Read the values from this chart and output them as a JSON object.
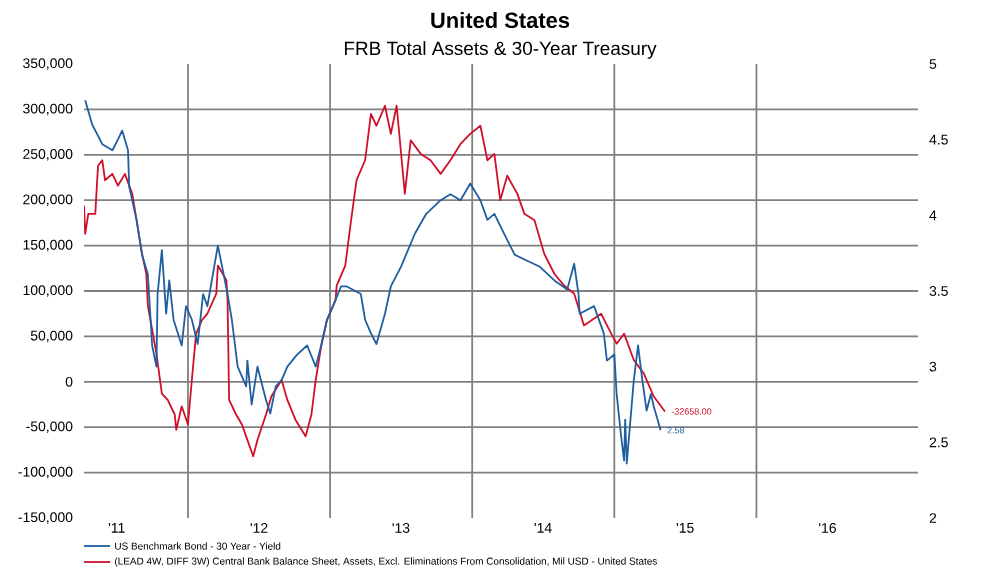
{
  "chart_data": {
    "type": "line",
    "title": "United States",
    "subtitle": "FRB Total Assets & 30-Year Treasury",
    "xlim": [
      "2011-04-09",
      "2017-02-20"
    ],
    "xticks": [
      {
        "value": "2011-07-02",
        "label": "'11"
      },
      {
        "value": "2012-01-01",
        "label": null
      },
      {
        "value": "2012-07-02",
        "label": "'12"
      },
      {
        "value": "2013-01-01",
        "label": null
      },
      {
        "value": "2013-07-02",
        "label": "'13"
      },
      {
        "value": "2014-01-01",
        "label": null
      },
      {
        "value": "2014-07-02",
        "label": "'14"
      },
      {
        "value": "2015-01-01",
        "label": null
      },
      {
        "value": "2015-07-02",
        "label": "'15"
      },
      {
        "value": "2016-01-01",
        "label": null
      },
      {
        "value": "2016-07-02",
        "label": "'16"
      }
    ],
    "ylim": [
      -150000,
      350000
    ],
    "yticks": [
      {
        "value": -150000,
        "label": "-150,000"
      },
      {
        "value": -100000,
        "label": "-100,000"
      },
      {
        "value": -50000,
        "label": "-50,000"
      },
      0,
      {
        "value": 50000,
        "label": "50,000"
      },
      {
        "value": 100000,
        "label": "100,000"
      },
      {
        "value": 150000,
        "label": "150,000"
      },
      {
        "value": 200000,
        "label": "200,000"
      },
      {
        "value": 250000,
        "label": "250,000"
      },
      {
        "value": 300000,
        "label": "300,000"
      },
      {
        "value": 350000,
        "label": "350,000"
      }
    ],
    "y2lim": [
      2,
      5
    ],
    "y2ticks": [
      2,
      2.5,
      3,
      3.5,
      4,
      4.5,
      5
    ],
    "grid": true,
    "legend": "bottom",
    "series": [
      {
        "name": "US Benchmark Bond - 30 Year - Yield",
        "color": "#1f5fa0",
        "axis": "y2",
        "x": [
          "2011-04-12",
          "2011-04-30",
          "2011-05-26",
          "2011-06-21",
          "2011-07-05",
          "2011-07-16",
          "2011-07-31",
          "2011-08-03",
          "2011-08-22",
          "2011-09-05",
          "2011-09-20",
          "2011-10-01",
          "2011-10-12",
          "2011-10-15",
          "2011-10-26",
          "2011-11-06",
          "2011-11-14",
          "2011-11-25",
          "2011-12-16",
          "2011-12-27",
          "2012-01-11",
          "2012-01-26",
          "2012-02-09",
          "2012-02-20",
          "2012-03-18",
          "2012-03-29",
          "2012-04-12",
          "2012-04-23",
          "2012-05-08",
          "2012-05-30",
          "2012-06-02",
          "2012-06-13",
          "2012-06-28",
          "2012-07-20",
          "2012-07-31",
          "2012-08-14",
          "2012-08-29",
          "2012-09-13",
          "2012-10-08",
          "2012-11-03",
          "2012-11-25",
          "2012-12-09",
          "2012-12-24",
          "2013-01-15",
          "2013-01-29",
          "2013-02-13",
          "2013-03-21",
          "2013-04-01",
          "2013-04-16",
          "2013-04-30",
          "2013-05-22",
          "2013-06-06",
          "2013-07-02",
          "2013-08-07",
          "2013-09-05",
          "2013-10-12",
          "2013-11-06",
          "2013-12-02",
          "2013-12-27",
          "2014-01-22",
          "2014-02-09",
          "2014-02-27",
          "2014-03-14",
          "2014-04-20",
          "2014-05-22",
          "2014-06-24",
          "2014-07-31",
          "2014-09-02",
          "2014-09-20",
          "2014-10-01",
          "2014-10-04",
          "2014-11-10",
          "2014-12-05",
          "2014-12-13",
          "2015-01-01",
          "2015-01-07",
          "2015-01-18",
          "2015-01-26",
          "2015-01-29",
          "2015-02-02",
          "2015-02-20",
          "2015-03-03",
          "2015-03-14",
          "2015-03-25",
          "2015-04-05",
          "2015-04-12",
          "2015-04-30"
        ],
        "values": [
          4.76,
          4.6,
          4.47,
          4.43,
          4.5,
          4.56,
          4.43,
          4.19,
          3.97,
          3.74,
          3.61,
          3.14,
          3.0,
          3.48,
          3.77,
          3.35,
          3.57,
          3.31,
          3.14,
          3.4,
          3.31,
          3.15,
          3.48,
          3.4,
          3.8,
          3.66,
          3.48,
          3.31,
          3.0,
          2.87,
          3.04,
          2.75,
          3.0,
          2.78,
          2.69,
          2.87,
          2.91,
          3.0,
          3.08,
          3.14,
          3.0,
          3.14,
          3.31,
          3.44,
          3.53,
          3.53,
          3.48,
          3.31,
          3.22,
          3.15,
          3.35,
          3.53,
          3.66,
          3.88,
          4.01,
          4.1,
          4.14,
          4.1,
          4.21,
          4.1,
          3.97,
          4.01,
          3.93,
          3.74,
          3.7,
          3.66,
          3.57,
          3.51,
          3.68,
          3.48,
          3.35,
          3.4,
          3.22,
          3.04,
          3.08,
          2.82,
          2.55,
          2.38,
          2.65,
          2.36,
          2.91,
          3.14,
          2.91,
          2.71,
          2.82,
          2.74,
          2.58
        ],
        "value_labels": [
          null,
          null,
          null,
          null,
          null,
          null,
          null,
          null,
          null,
          null,
          null,
          null,
          null,
          null,
          null,
          null,
          null,
          null,
          null,
          null,
          null,
          null,
          null,
          null,
          null,
          null,
          null,
          null,
          null,
          null,
          null,
          null,
          null,
          null,
          null,
          null,
          null,
          null,
          null,
          null,
          null,
          null,
          null,
          null,
          null,
          null,
          null,
          null,
          null,
          null,
          null,
          null,
          null,
          null,
          null,
          null,
          null,
          null,
          null,
          null,
          null,
          null,
          null,
          null,
          null,
          null,
          null,
          null,
          null,
          null,
          null,
          null,
          null,
          null,
          null,
          null,
          null,
          null,
          null,
          null,
          null,
          null,
          null,
          null,
          null,
          null,
          "2.58"
        ]
      },
      {
        "name": "(LEAD 4W, DIFF 3W) Central Bank Balance Sheet, Assets, Excl. Eliminations From Consolidation, Mil USD - United States",
        "color": "#d0102a",
        "x": [
          "2011-04-09",
          "2011-04-12",
          "2011-04-20",
          "2011-05-08",
          "2011-05-15",
          "2011-05-26",
          "2011-06-02",
          "2011-06-21",
          "2011-07-05",
          "2011-07-23",
          "2011-08-11",
          "2011-08-22",
          "2011-09-05",
          "2011-09-16",
          "2011-09-20",
          "2011-10-12",
          "2011-10-26",
          "2011-11-10",
          "2011-11-28",
          "2011-12-02",
          "2011-12-16",
          "2012-01-01",
          "2012-01-11",
          "2012-01-22",
          "2012-02-06",
          "2012-02-20",
          "2012-03-14",
          "2012-03-18",
          "2012-04-09",
          "2012-04-12",
          "2012-04-16",
          "2012-05-04",
          "2012-05-19",
          "2012-06-02",
          "2012-06-17",
          "2012-06-28",
          "2012-07-20",
          "2012-08-03",
          "2012-08-29",
          "2012-09-13",
          "2012-10-04",
          "2012-10-30",
          "2012-11-14",
          "2012-11-25",
          "2012-12-09",
          "2012-12-24",
          "2013-01-15",
          "2013-01-18",
          "2013-02-09",
          "2013-02-24",
          "2013-03-10",
          "2013-04-01",
          "2013-04-16",
          "2013-04-30",
          "2013-05-22",
          "2013-06-06",
          "2013-06-21",
          "2013-07-12",
          "2013-07-27",
          "2013-08-22",
          "2013-09-16",
          "2013-10-12",
          "2013-11-06",
          "2013-12-02",
          "2013-12-27",
          "2014-01-22",
          "2014-02-09",
          "2014-02-27",
          "2014-03-14",
          "2014-04-01",
          "2014-04-27",
          "2014-05-15",
          "2014-06-10",
          "2014-07-05",
          "2014-07-31",
          "2014-08-25",
          "2014-09-20",
          "2014-10-15",
          "2014-11-28",
          "2014-12-24",
          "2015-01-07",
          "2015-01-26",
          "2015-02-20",
          "2015-03-18",
          "2015-04-12",
          "2015-05-11"
        ],
        "values": [
          194000,
          163000,
          185000,
          185000,
          238000,
          244000,
          222000,
          229000,
          216000,
          229000,
          207000,
          178000,
          141000,
          119000,
          84000,
          31000,
          -13000,
          -20000,
          -36000,
          -53000,
          -27000,
          -47000,
          2000,
          53000,
          68000,
          75000,
          97000,
          128000,
          112000,
          90000,
          -20000,
          -36000,
          -47000,
          -64000,
          -82000,
          -64000,
          -36000,
          -16000,
          2000,
          -20000,
          -42000,
          -60000,
          -36000,
          2000,
          39000,
          68000,
          90000,
          106000,
          128000,
          178000,
          222000,
          244000,
          295000,
          282000,
          304000,
          273000,
          304000,
          207000,
          266000,
          251000,
          244000,
          229000,
          244000,
          262000,
          273000,
          282000,
          244000,
          251000,
          200000,
          227000,
          207000,
          185000,
          178000,
          141000,
          119000,
          106000,
          97000,
          62000,
          75000,
          53000,
          42000,
          53000,
          24000,
          9000,
          -16000,
          -32658
        ],
        "value_labels": [
          null,
          null,
          null,
          null,
          null,
          null,
          null,
          null,
          null,
          null,
          null,
          null,
          null,
          null,
          null,
          null,
          null,
          null,
          null,
          null,
          null,
          null,
          null,
          null,
          null,
          null,
          null,
          null,
          null,
          null,
          null,
          null,
          null,
          null,
          null,
          null,
          null,
          null,
          null,
          null,
          null,
          null,
          null,
          null,
          null,
          null,
          null,
          null,
          null,
          null,
          null,
          null,
          null,
          null,
          null,
          null,
          null,
          null,
          null,
          null,
          null,
          null,
          null,
          null,
          null,
          null,
          null,
          null,
          null,
          null,
          null,
          null,
          null,
          null,
          null,
          null,
          null,
          null,
          null,
          null,
          null,
          null,
          null,
          null,
          null,
          "-32658.00"
        ]
      }
    ]
  }
}
